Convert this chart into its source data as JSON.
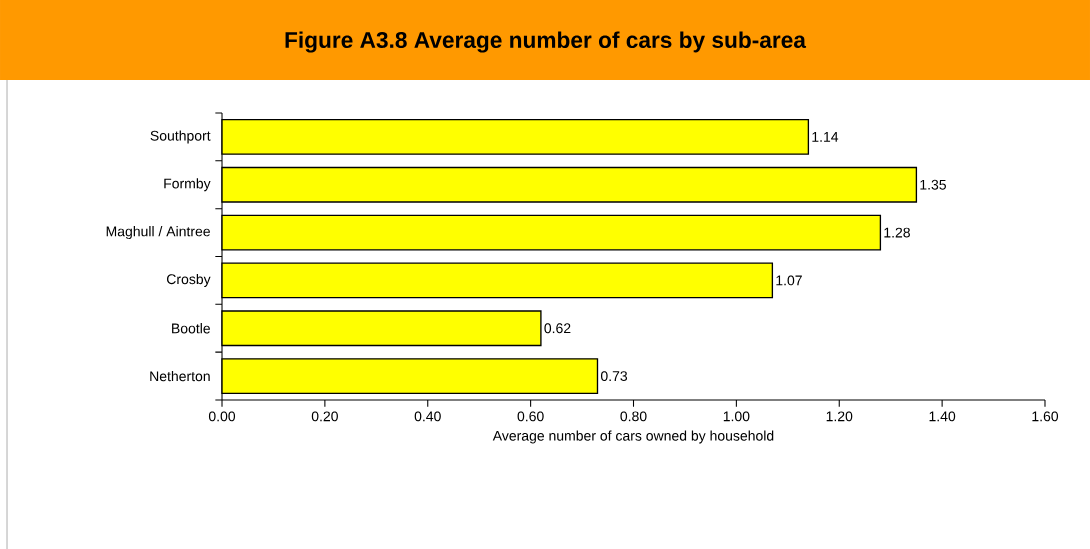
{
  "chart_data": {
    "type": "bar",
    "orientation": "horizontal",
    "title": "Figure A3.8  Average number of cars by sub-area",
    "xlabel": "Average number of cars owned by household",
    "categories": [
      "Southport",
      "Formby",
      "Maghull / Aintree",
      "Crosby",
      "Bootle",
      "Netherton"
    ],
    "values": [
      1.14,
      1.35,
      1.28,
      1.07,
      0.62,
      0.73
    ],
    "color": "#ffff00",
    "data_labels": true,
    "grid": false,
    "xlim": [
      0,
      1.6
    ],
    "xticks": [
      {
        "value": 0,
        "label": "0.00"
      },
      {
        "value": 0.2,
        "label": "0.20"
      },
      {
        "value": 0.4,
        "label": "0.40"
      },
      {
        "value": 0.6,
        "label": "0.60"
      },
      {
        "value": 0.8,
        "label": "0.80"
      },
      {
        "value": 1.0,
        "label": "1.00"
      },
      {
        "value": 1.2,
        "label": "1.20"
      },
      {
        "value": 1.4,
        "label": "1.40"
      },
      {
        "value": 1.6,
        "label": "1.60"
      }
    ]
  }
}
